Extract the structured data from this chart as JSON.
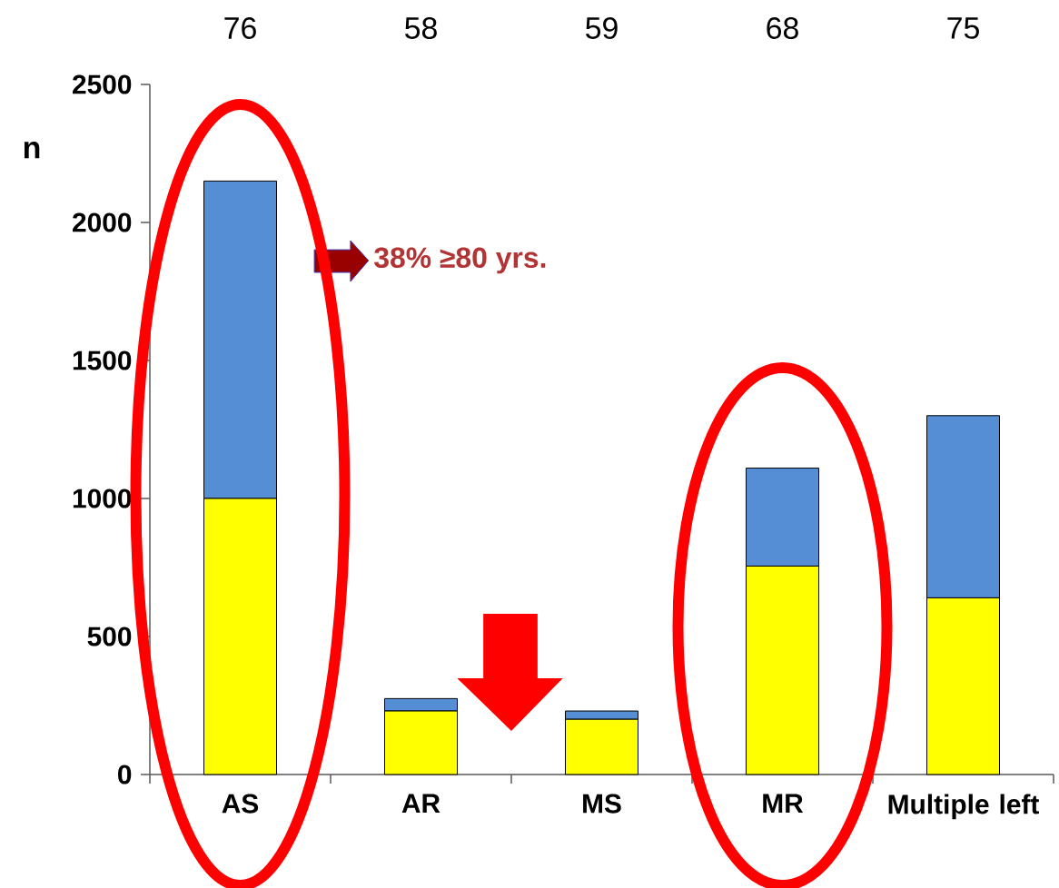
{
  "chart_data": {
    "type": "bar",
    "stacked": true,
    "ylabel": "n",
    "categories": [
      "AS",
      "AR",
      "MS",
      "MR",
      "Multiple left"
    ],
    "series": [
      {
        "color": "#ffff00",
        "values": [
          1000,
          230,
          200,
          755,
          640
        ]
      },
      {
        "color": "#558ed5",
        "values": [
          1150,
          45,
          30,
          355,
          660
        ]
      }
    ],
    "ylim": [
      0,
      2500
    ],
    "yticks": [
      0,
      500,
      1000,
      1500,
      2000,
      2500
    ],
    "annotations": [
      "76",
      "58",
      "59",
      "68",
      "75",
      "38% ≥80 yrs."
    ]
  }
}
